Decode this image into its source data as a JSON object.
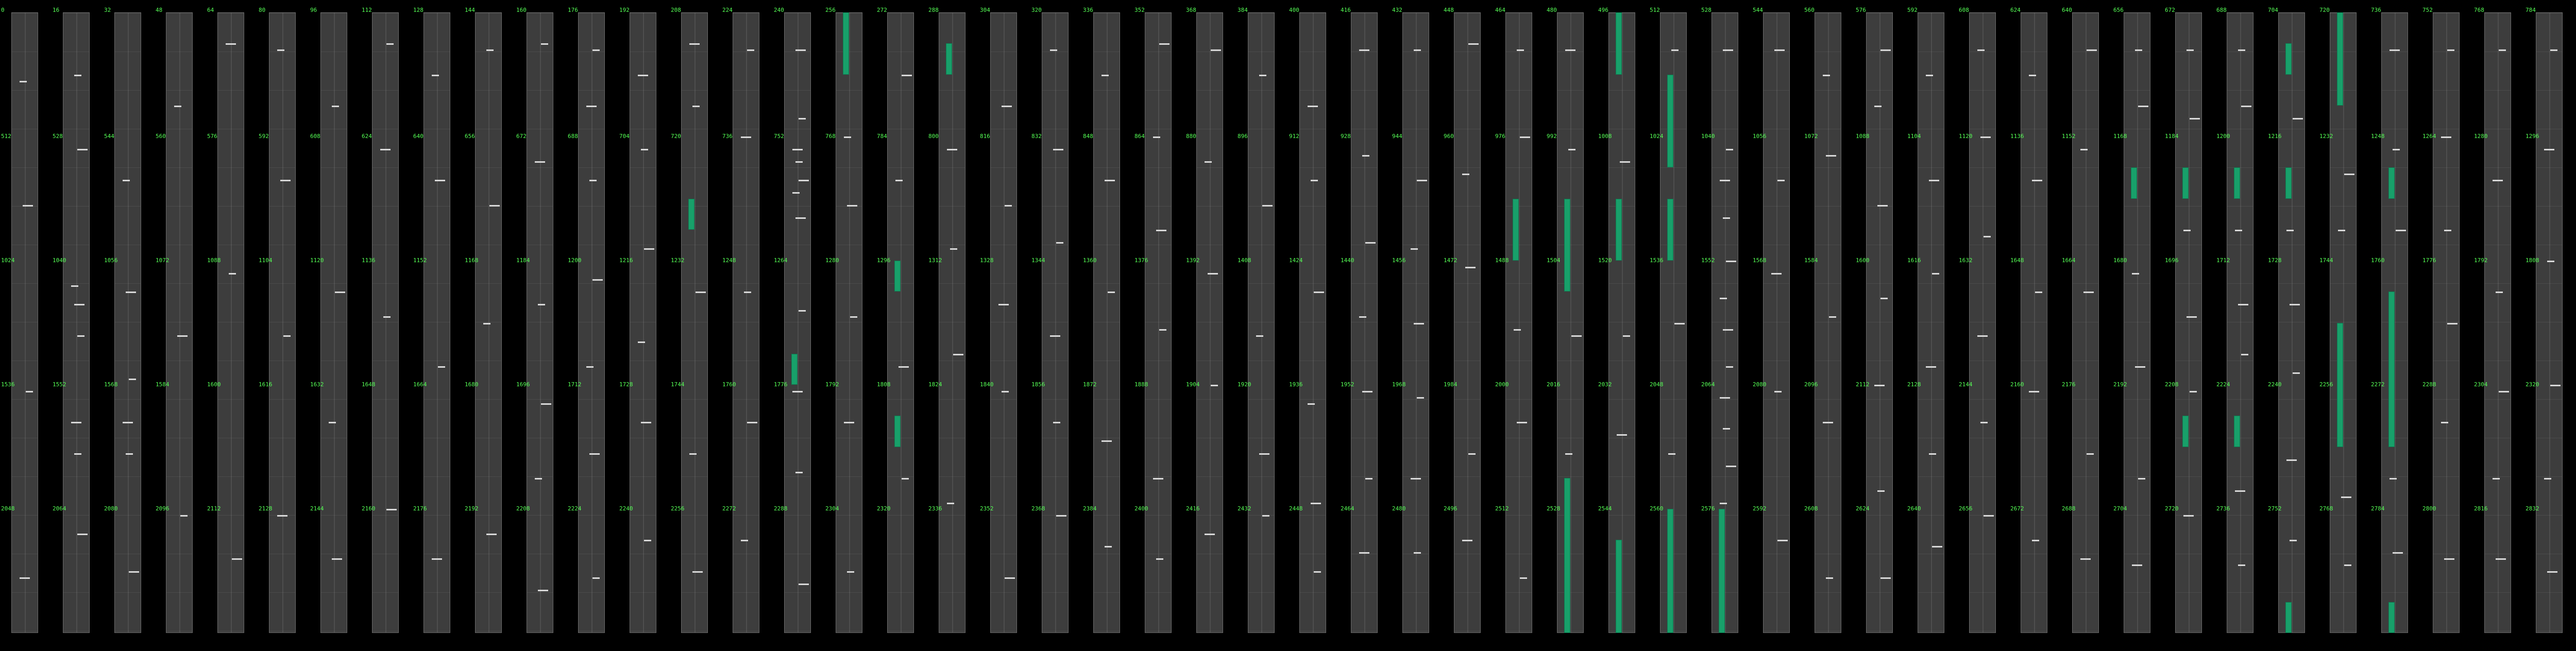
{
  "theme": {
    "background": "#000000",
    "column": "#3d3d3d",
    "tick": "#55ff55",
    "bar": "#18a06a",
    "mark": "#d8d8d8"
  },
  "rows": 5,
  "column_labels": [
    [
      "0",
      "512",
      "1024",
      "1536",
      "2048"
    ],
    [
      "16",
      "528",
      "1040",
      "1552",
      "2064"
    ],
    [
      "32",
      "544",
      "1056",
      "1568",
      "2080"
    ],
    [
      "48",
      "560",
      "1072",
      "1584",
      "2096"
    ],
    [
      "64",
      "576",
      "1088",
      "1600",
      "2112"
    ],
    [
      "80",
      "592",
      "1104",
      "1616",
      "2128"
    ],
    [
      "96",
      "608",
      "1120",
      "1632",
      "2144"
    ],
    [
      "112",
      "624",
      "1136",
      "1648",
      "2160"
    ],
    [
      "128",
      "640",
      "1152",
      "1664",
      "2176"
    ],
    [
      "144",
      "656",
      "1168",
      "1680",
      "2192"
    ],
    [
      "160",
      "672",
      "1184",
      "1696",
      "2208"
    ],
    [
      "176",
      "688",
      "1200",
      "1712",
      "2224"
    ],
    [
      "192",
      "704",
      "1216",
      "1728",
      "2240"
    ],
    [
      "208",
      "720",
      "1232",
      "1744",
      "2256"
    ],
    [
      "224",
      "736",
      "1248",
      "1760",
      "2272"
    ],
    [
      "240",
      "752",
      "1264",
      "1776",
      "2288"
    ],
    [
      "256",
      "768",
      "1280",
      "1792",
      "2304"
    ],
    [
      "272",
      "784",
      "1296",
      "1808",
      "2320"
    ],
    [
      "288",
      "800",
      "1312",
      "1824",
      "2336"
    ],
    [
      "304",
      "816",
      "1328",
      "1840",
      "2352"
    ],
    [
      "320",
      "832",
      "1344",
      "1856",
      "2368"
    ],
    [
      "336",
      "848",
      "1360",
      "1872",
      "2384"
    ],
    [
      "352",
      "864",
      "1376",
      "1888",
      "2400"
    ],
    [
      "368",
      "880",
      "1392",
      "1904",
      "2416"
    ],
    [
      "384",
      "896",
      "1408",
      "1920",
      "2432"
    ],
    [
      "400",
      "912",
      "1424",
      "1936",
      "2448"
    ],
    [
      "416",
      "928",
      "1440",
      "1952",
      "2464"
    ],
    [
      "432",
      "944",
      "1456",
      "1968",
      "2480"
    ],
    [
      "448",
      "960",
      "1472",
      "1984",
      "2496"
    ],
    [
      "464",
      "976",
      "1488",
      "2000",
      "2512"
    ],
    [
      "480",
      "992",
      "1504",
      "2016",
      "2528"
    ],
    [
      "496",
      "1008",
      "1520",
      "2032",
      "2544"
    ],
    [
      "512",
      "1024",
      "1536",
      "2048",
      "2560"
    ],
    [
      "528",
      "1040",
      "1552",
      "2064",
      "2576"
    ],
    [
      "544",
      "1056",
      "1568",
      "2080",
      "2592"
    ],
    [
      "560",
      "1072",
      "1584",
      "2096",
      "2608"
    ],
    [
      "576",
      "1088",
      "1600",
      "2112",
      "2624"
    ],
    [
      "592",
      "1104",
      "1616",
      "2128",
      "2640"
    ],
    [
      "608",
      "1120",
      "1632",
      "2144",
      "2656"
    ],
    [
      "624",
      "1136",
      "1648",
      "2160",
      "2672"
    ],
    [
      "640",
      "1152",
      "1664",
      "2176",
      "2688"
    ],
    [
      "656",
      "1168",
      "1680",
      "2192",
      "2704"
    ],
    [
      "672",
      "1184",
      "1696",
      "2208",
      "2720"
    ],
    [
      "688",
      "1200",
      "1712",
      "2224",
      "2736"
    ],
    [
      "704",
      "1216",
      "1728",
      "2240",
      "2752"
    ],
    [
      "720",
      "1232",
      "1744",
      "2256",
      "2768"
    ],
    [
      "736",
      "1248",
      "1760",
      "2272",
      "2784"
    ],
    [
      "752",
      "1264",
      "1776",
      "2288",
      "2800"
    ],
    [
      "768",
      "1280",
      "1792",
      "2304",
      "2816"
    ],
    [
      "784",
      "1296",
      "1808",
      "2320",
      "2832"
    ],
    [
      "800",
      "1312",
      "1824",
      "2336",
      "2848"
    ],
    [
      "816",
      "1328",
      "1840",
      "2352",
      "2864"
    ]
  ],
  "bars": [
    {
      "col": 13,
      "start": 1.5,
      "end": 1.75
    },
    {
      "col": 15,
      "start": 2.75,
      "end": 3.0
    },
    {
      "col": 16,
      "start": 0.0,
      "end": 0.5
    },
    {
      "col": 17,
      "start": 2.0,
      "end": 2.25
    },
    {
      "col": 17,
      "start": 3.25,
      "end": 3.5
    },
    {
      "col": 18,
      "start": 0.25,
      "end": 0.5
    },
    {
      "col": 29,
      "start": 1.5,
      "end": 2.0
    },
    {
      "col": 30,
      "start": 1.5,
      "end": 2.25
    },
    {
      "col": 30,
      "start": 3.75,
      "end": 5.0
    },
    {
      "col": 31,
      "start": 0.0,
      "end": 0.5
    },
    {
      "col": 31,
      "start": 1.5,
      "end": 2.0
    },
    {
      "col": 31,
      "start": 4.25,
      "end": 5.0
    },
    {
      "col": 32,
      "start": 0.5,
      "end": 1.25
    },
    {
      "col": 32,
      "start": 1.5,
      "end": 2.0
    },
    {
      "col": 32,
      "start": 4.0,
      "end": 5.0
    },
    {
      "col": 33,
      "start": 4.0,
      "end": 5.0
    },
    {
      "col": 41,
      "start": 1.25,
      "end": 1.5
    },
    {
      "col": 42,
      "start": 3.25,
      "end": 3.5
    },
    {
      "col": 42,
      "start": 1.25,
      "end": 1.5
    },
    {
      "col": 43,
      "start": 1.25,
      "end": 1.5
    },
    {
      "col": 43,
      "start": 3.25,
      "end": 3.5
    },
    {
      "col": 44,
      "start": 0.25,
      "end": 0.5
    },
    {
      "col": 44,
      "start": 1.25,
      "end": 1.5
    },
    {
      "col": 44,
      "start": 4.75,
      "end": 5.0
    },
    {
      "col": 45,
      "start": 0.0,
      "end": 0.75
    },
    {
      "col": 45,
      "start": 2.5,
      "end": 3.5
    },
    {
      "col": 46,
      "start": 1.25,
      "end": 1.5
    },
    {
      "col": 46,
      "start": 2.25,
      "end": 3.5
    },
    {
      "col": 46,
      "start": 4.75,
      "end": 5.0
    },
    {
      "col": 50,
      "start": 1.25,
      "end": 3.5
    },
    {
      "col": 51,
      "start": 1.25,
      "end": 3.5
    }
  ],
  "marks": [
    {
      "col": 0,
      "t": 0.55
    },
    {
      "col": 0,
      "t": 1.55
    },
    {
      "col": 0,
      "t": 3.05
    },
    {
      "col": 0,
      "t": 4.55
    },
    {
      "col": 1,
      "t": 0.5
    },
    {
      "col": 1,
      "t": 1.1
    },
    {
      "col": 1,
      "t": 2.2
    },
    {
      "col": 1,
      "t": 2.35
    },
    {
      "col": 1,
      "t": 2.6
    },
    {
      "col": 1,
      "t": 3.3
    },
    {
      "col": 1,
      "t": 3.55
    },
    {
      "col": 1,
      "t": 4.2
    },
    {
      "col": 2,
      "t": 1.35
    },
    {
      "col": 2,
      "t": 2.25
    },
    {
      "col": 2,
      "t": 2.95
    },
    {
      "col": 2,
      "t": 3.3
    },
    {
      "col": 2,
      "t": 3.55
    },
    {
      "col": 2,
      "t": 4.5
    },
    {
      "col": 3,
      "t": 0.75
    },
    {
      "col": 3,
      "t": 2.6
    },
    {
      "col": 3,
      "t": 4.05
    },
    {
      "col": 4,
      "t": 0.25
    },
    {
      "col": 4,
      "t": 2.1
    },
    {
      "col": 4,
      "t": 4.4
    },
    {
      "col": 5,
      "t": 0.3
    },
    {
      "col": 5,
      "t": 1.35
    },
    {
      "col": 5,
      "t": 2.6
    },
    {
      "col": 5,
      "t": 4.05
    },
    {
      "col": 6,
      "t": 0.75
    },
    {
      "col": 6,
      "t": 2.25
    },
    {
      "col": 6,
      "t": 3.3
    },
    {
      "col": 6,
      "t": 4.4
    },
    {
      "col": 7,
      "t": 0.25
    },
    {
      "col": 7,
      "t": 1.1
    },
    {
      "col": 7,
      "t": 2.45
    },
    {
      "col": 7,
      "t": 4.0
    },
    {
      "col": 8,
      "t": 0.5
    },
    {
      "col": 8,
      "t": 1.35
    },
    {
      "col": 8,
      "t": 2.85
    },
    {
      "col": 8,
      "t": 4.4
    },
    {
      "col": 9,
      "t": 0.3
    },
    {
      "col": 9,
      "t": 1.55
    },
    {
      "col": 9,
      "t": 2.5
    },
    {
      "col": 9,
      "t": 4.2
    },
    {
      "col": 10,
      "t": 0.25
    },
    {
      "col": 10,
      "t": 1.2
    },
    {
      "col": 10,
      "t": 2.35
    },
    {
      "col": 10,
      "t": 3.15
    },
    {
      "col": 10,
      "t": 3.75
    },
    {
      "col": 10,
      "t": 4.65
    },
    {
      "col": 11,
      "t": 0.3
    },
    {
      "col": 11,
      "t": 0.75
    },
    {
      "col": 11,
      "t": 1.35
    },
    {
      "col": 11,
      "t": 2.15
    },
    {
      "col": 11,
      "t": 2.85
    },
    {
      "col": 11,
      "t": 3.55
    },
    {
      "col": 11,
      "t": 4.55
    },
    {
      "col": 12,
      "t": 0.5
    },
    {
      "col": 12,
      "t": 1.1
    },
    {
      "col": 12,
      "t": 1.9
    },
    {
      "col": 12,
      "t": 2.65
    },
    {
      "col": 12,
      "t": 3.3
    },
    {
      "col": 12,
      "t": 4.25
    },
    {
      "col": 13,
      "t": 0.25
    },
    {
      "col": 13,
      "t": 0.75
    },
    {
      "col": 13,
      "t": 2.25
    },
    {
      "col": 13,
      "t": 3.55
    },
    {
      "col": 13,
      "t": 4.5
    },
    {
      "col": 14,
      "t": 0.3
    },
    {
      "col": 14,
      "t": 1.0
    },
    {
      "col": 14,
      "t": 2.25
    },
    {
      "col": 14,
      "t": 3.3
    },
    {
      "col": 14,
      "t": 4.25
    },
    {
      "col": 15,
      "t": 0.3
    },
    {
      "col": 15,
      "t": 0.85
    },
    {
      "col": 15,
      "t": 1.1
    },
    {
      "col": 15,
      "t": 1.2
    },
    {
      "col": 15,
      "t": 1.35
    },
    {
      "col": 15,
      "t": 1.45
    },
    {
      "col": 15,
      "t": 1.65
    },
    {
      "col": 15,
      "t": 2.4
    },
    {
      "col": 15,
      "t": 3.05
    },
    {
      "col": 15,
      "t": 3.7
    },
    {
      "col": 15,
      "t": 4.6
    },
    {
      "col": 16,
      "t": 1.0
    },
    {
      "col": 16,
      "t": 1.55
    },
    {
      "col": 16,
      "t": 2.45
    },
    {
      "col": 16,
      "t": 3.3
    },
    {
      "col": 16,
      "t": 4.5
    },
    {
      "col": 17,
      "t": 0.5
    },
    {
      "col": 17,
      "t": 1.35
    },
    {
      "col": 17,
      "t": 2.85
    },
    {
      "col": 17,
      "t": 3.75
    },
    {
      "col": 18,
      "t": 1.1
    },
    {
      "col": 18,
      "t": 1.9
    },
    {
      "col": 18,
      "t": 2.75
    },
    {
      "col": 18,
      "t": 3.95
    },
    {
      "col": 19,
      "t": 0.75
    },
    {
      "col": 19,
      "t": 1.55
    },
    {
      "col": 19,
      "t": 2.35
    },
    {
      "col": 19,
      "t": 3.05
    },
    {
      "col": 19,
      "t": 4.55
    },
    {
      "col": 20,
      "t": 0.3
    },
    {
      "col": 20,
      "t": 1.1
    },
    {
      "col": 20,
      "t": 1.85
    },
    {
      "col": 20,
      "t": 2.6
    },
    {
      "col": 20,
      "t": 3.3
    },
    {
      "col": 20,
      "t": 4.05
    },
    {
      "col": 21,
      "t": 0.5
    },
    {
      "col": 21,
      "t": 1.35
    },
    {
      "col": 21,
      "t": 2.25
    },
    {
      "col": 21,
      "t": 3.45
    },
    {
      "col": 21,
      "t": 4.3
    },
    {
      "col": 22,
      "t": 0.25
    },
    {
      "col": 22,
      "t": 1.0
    },
    {
      "col": 22,
      "t": 1.75
    },
    {
      "col": 22,
      "t": 2.55
    },
    {
      "col": 22,
      "t": 3.75
    },
    {
      "col": 22,
      "t": 4.4
    },
    {
      "col": 23,
      "t": 0.3
    },
    {
      "col": 23,
      "t": 1.2
    },
    {
      "col": 23,
      "t": 2.1
    },
    {
      "col": 23,
      "t": 3.0
    },
    {
      "col": 23,
      "t": 4.2
    },
    {
      "col": 24,
      "t": 0.5
    },
    {
      "col": 24,
      "t": 1.55
    },
    {
      "col": 24,
      "t": 2.6
    },
    {
      "col": 24,
      "t": 3.55
    },
    {
      "col": 24,
      "t": 4.05
    },
    {
      "col": 25,
      "t": 0.75
    },
    {
      "col": 25,
      "t": 1.35
    },
    {
      "col": 25,
      "t": 2.25
    },
    {
      "col": 25,
      "t": 3.15
    },
    {
      "col": 25,
      "t": 3.95
    },
    {
      "col": 25,
      "t": 4.5
    },
    {
      "col": 26,
      "t": 0.3
    },
    {
      "col": 26,
      "t": 1.15
    },
    {
      "col": 26,
      "t": 1.85
    },
    {
      "col": 26,
      "t": 2.45
    },
    {
      "col": 26,
      "t": 3.05
    },
    {
      "col": 26,
      "t": 3.75
    },
    {
      "col": 26,
      "t": 4.35
    },
    {
      "col": 27,
      "t": 0.3
    },
    {
      "col": 27,
      "t": 1.35
    },
    {
      "col": 27,
      "t": 1.9
    },
    {
      "col": 27,
      "t": 2.5
    },
    {
      "col": 27,
      "t": 3.1
    },
    {
      "col": 27,
      "t": 3.75
    },
    {
      "col": 27,
      "t": 4.35
    },
    {
      "col": 28,
      "t": 0.25
    },
    {
      "col": 28,
      "t": 1.3
    },
    {
      "col": 28,
      "t": 2.05
    },
    {
      "col": 28,
      "t": 3.55
    },
    {
      "col": 28,
      "t": 4.25
    },
    {
      "col": 29,
      "t": 0.3
    },
    {
      "col": 29,
      "t": 1.0
    },
    {
      "col": 29,
      "t": 2.55
    },
    {
      "col": 29,
      "t": 3.3
    },
    {
      "col": 29,
      "t": 4.55
    },
    {
      "col": 30,
      "t": 0.3
    },
    {
      "col": 30,
      "t": 1.1
    },
    {
      "col": 30,
      "t": 2.6
    },
    {
      "col": 30,
      "t": 3.55
    },
    {
      "col": 31,
      "t": 1.2
    },
    {
      "col": 31,
      "t": 2.6
    },
    {
      "col": 31,
      "t": 3.4
    },
    {
      "col": 32,
      "t": 0.3
    },
    {
      "col": 32,
      "t": 2.5
    },
    {
      "col": 32,
      "t": 3.55
    },
    {
      "col": 33,
      "t": 0.3
    },
    {
      "col": 33,
      "t": 1.1
    },
    {
      "col": 33,
      "t": 1.35
    },
    {
      "col": 33,
      "t": 1.65
    },
    {
      "col": 33,
      "t": 2.0
    },
    {
      "col": 33,
      "t": 2.3
    },
    {
      "col": 33,
      "t": 2.55
    },
    {
      "col": 33,
      "t": 2.85
    },
    {
      "col": 33,
      "t": 3.1
    },
    {
      "col": 33,
      "t": 3.35
    },
    {
      "col": 33,
      "t": 3.65
    },
    {
      "col": 33,
      "t": 3.95
    },
    {
      "col": 34,
      "t": 0.3
    },
    {
      "col": 34,
      "t": 1.35
    },
    {
      "col": 34,
      "t": 2.1
    },
    {
      "col": 34,
      "t": 3.05
    },
    {
      "col": 34,
      "t": 4.25
    },
    {
      "col": 35,
      "t": 0.5
    },
    {
      "col": 35,
      "t": 1.15
    },
    {
      "col": 35,
      "t": 2.45
    },
    {
      "col": 35,
      "t": 3.3
    },
    {
      "col": 35,
      "t": 4.55
    },
    {
      "col": 36,
      "t": 0.3
    },
    {
      "col": 36,
      "t": 0.75
    },
    {
      "col": 36,
      "t": 1.55
    },
    {
      "col": 36,
      "t": 2.3
    },
    {
      "col": 36,
      "t": 3.0
    },
    {
      "col": 36,
      "t": 3.85
    },
    {
      "col": 36,
      "t": 4.55
    },
    {
      "col": 37,
      "t": 0.5
    },
    {
      "col": 37,
      "t": 1.35
    },
    {
      "col": 37,
      "t": 2.1
    },
    {
      "col": 37,
      "t": 2.85
    },
    {
      "col": 37,
      "t": 3.55
    },
    {
      "col": 37,
      "t": 4.3
    },
    {
      "col": 38,
      "t": 0.3
    },
    {
      "col": 38,
      "t": 1.0
    },
    {
      "col": 38,
      "t": 1.8
    },
    {
      "col": 38,
      "t": 2.6
    },
    {
      "col": 38,
      "t": 3.3
    },
    {
      "col": 38,
      "t": 4.05
    },
    {
      "col": 39,
      "t": 0.5
    },
    {
      "col": 39,
      "t": 1.35
    },
    {
      "col": 39,
      "t": 2.25
    },
    {
      "col": 39,
      "t": 3.05
    },
    {
      "col": 39,
      "t": 4.25
    },
    {
      "col": 40,
      "t": 0.3
    },
    {
      "col": 40,
      "t": 1.1
    },
    {
      "col": 40,
      "t": 2.25
    },
    {
      "col": 40,
      "t": 3.55
    },
    {
      "col": 40,
      "t": 4.4
    },
    {
      "col": 41,
      "t": 0.3
    },
    {
      "col": 41,
      "t": 0.75
    },
    {
      "col": 41,
      "t": 2.1
    },
    {
      "col": 41,
      "t": 2.85
    },
    {
      "col": 41,
      "t": 3.75
    },
    {
      "col": 41,
      "t": 4.45
    },
    {
      "col": 42,
      "t": 0.3
    },
    {
      "col": 42,
      "t": 0.85
    },
    {
      "col": 42,
      "t": 1.75
    },
    {
      "col": 42,
      "t": 2.45
    },
    {
      "col": 42,
      "t": 3.05
    },
    {
      "col": 42,
      "t": 4.05
    },
    {
      "col": 43,
      "t": 0.3
    },
    {
      "col": 43,
      "t": 0.75
    },
    {
      "col": 43,
      "t": 1.75
    },
    {
      "col": 43,
      "t": 2.35
    },
    {
      "col": 43,
      "t": 2.75
    },
    {
      "col": 43,
      "t": 3.85
    },
    {
      "col": 43,
      "t": 4.45
    },
    {
      "col": 44,
      "t": 0.85
    },
    {
      "col": 44,
      "t": 1.75
    },
    {
      "col": 44,
      "t": 2.35
    },
    {
      "col": 44,
      "t": 2.9
    },
    {
      "col": 44,
      "t": 3.6
    },
    {
      "col": 44,
      "t": 4.25
    },
    {
      "col": 45,
      "t": 1.3
    },
    {
      "col": 45,
      "t": 1.75
    },
    {
      "col": 45,
      "t": 3.9
    },
    {
      "col": 45,
      "t": 4.45
    },
    {
      "col": 46,
      "t": 0.3
    },
    {
      "col": 46,
      "t": 1.1
    },
    {
      "col": 46,
      "t": 1.75
    },
    {
      "col": 46,
      "t": 3.75
    },
    {
      "col": 46,
      "t": 4.35
    },
    {
      "col": 47,
      "t": 0.3
    },
    {
      "col": 47,
      "t": 1.0
    },
    {
      "col": 47,
      "t": 1.75
    },
    {
      "col": 47,
      "t": 2.5
    },
    {
      "col": 47,
      "t": 3.3
    },
    {
      "col": 47,
      "t": 4.4
    },
    {
      "col": 48,
      "t": 0.3
    },
    {
      "col": 48,
      "t": 1.35
    },
    {
      "col": 48,
      "t": 2.25
    },
    {
      "col": 48,
      "t": 3.05
    },
    {
      "col": 48,
      "t": 3.75
    },
    {
      "col": 48,
      "t": 4.4
    },
    {
      "col": 49,
      "t": 0.3
    },
    {
      "col": 49,
      "t": 1.1
    },
    {
      "col": 49,
      "t": 2.0
    },
    {
      "col": 49,
      "t": 3.0
    },
    {
      "col": 49,
      "t": 3.75
    },
    {
      "col": 49,
      "t": 4.5
    },
    {
      "col": 50,
      "t": 0.55
    },
    {
      "col": 50,
      "t": 1.0
    },
    {
      "col": 50,
      "t": 4.25
    },
    {
      "col": 50,
      "t": 4.55
    },
    {
      "col": 50,
      "t": 4.75
    },
    {
      "col": 51,
      "t": 0.3
    },
    {
      "col": 51,
      "t": 1.0
    },
    {
      "col": 51,
      "t": 3.75
    },
    {
      "col": 51,
      "t": 4.25
    },
    {
      "col": 51,
      "t": 4.55
    },
    {
      "col": 51,
      "t": 4.75
    }
  ]
}
